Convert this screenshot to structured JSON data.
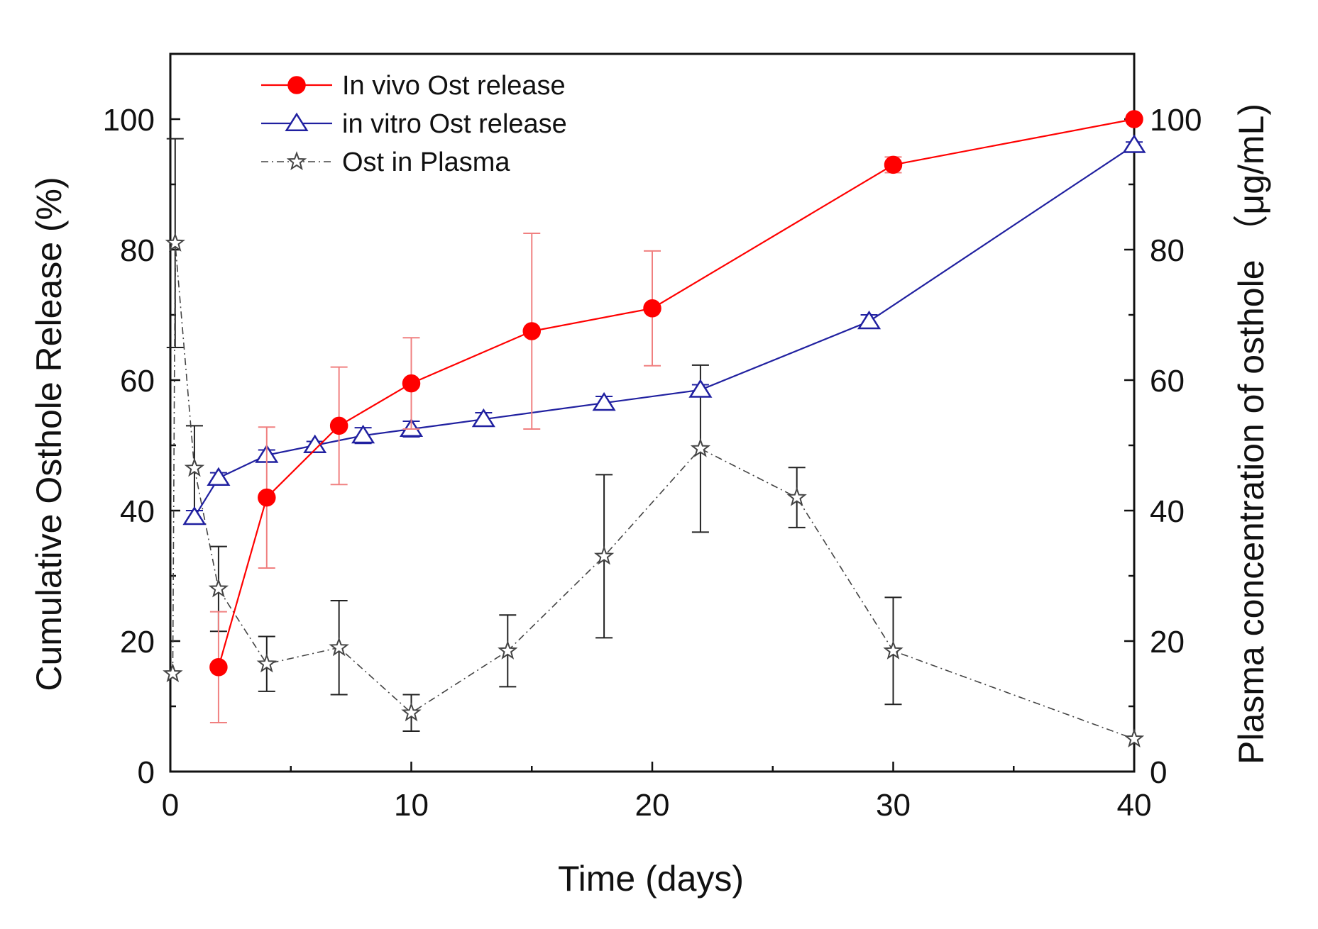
{
  "chart_data": {
    "type": "line",
    "xlabel": "Time (days)",
    "ylabel": "Cumulative Osthole Release (%)",
    "ylabel_right": "Plasma concentration of osthole （μg/mL)",
    "xlim": [
      0,
      40
    ],
    "ylim": [
      0,
      110
    ],
    "ylim_right": [
      0,
      110
    ],
    "x_ticks": [
      "0",
      "10",
      "20",
      "30",
      "40"
    ],
    "y_ticks": [
      "0",
      "20",
      "40",
      "60",
      "80",
      "100"
    ],
    "y_ticks_right": [
      "0",
      "20",
      "40",
      "60",
      "80",
      "100"
    ],
    "legend_position": "top-left",
    "series": [
      {
        "name": "In vivo Ost release",
        "axis": "left",
        "color": "#ff0000",
        "error_color": "#f08080",
        "marker": "filled-circle",
        "x": [
          2,
          4,
          7,
          10,
          15,
          20,
          30,
          40
        ],
        "y": [
          16,
          42,
          53,
          59.5,
          67.5,
          71,
          93,
          100
        ],
        "error": [
          8.5,
          10.8,
          9,
          7,
          15,
          8.8,
          1.2,
          0
        ]
      },
      {
        "name": "in vitro Ost release",
        "axis": "left",
        "color": "#2020a0",
        "error_color": "#2020a0",
        "marker": "open-triangle",
        "x": [
          1,
          2,
          4,
          6,
          8,
          10,
          13,
          18,
          22,
          29,
          40
        ],
        "y": [
          39,
          45,
          48.5,
          50,
          51.5,
          52.5,
          54,
          56.5,
          58.5,
          69,
          96
        ],
        "error": [
          1,
          0.8,
          0.8,
          0.6,
          1.2,
          1.2,
          1,
          1,
          0.8,
          1,
          0.5
        ]
      },
      {
        "name": "Ost in Plasma",
        "axis": "right",
        "color": "#444444",
        "error_color": "#222222",
        "marker": "open-star",
        "x": [
          0.1,
          0.2,
          1,
          2,
          4,
          7,
          10,
          14,
          18,
          22,
          26,
          30,
          40
        ],
        "y": [
          15,
          81,
          46.5,
          28,
          16.5,
          19,
          9,
          18.5,
          33,
          49.5,
          42,
          18.5,
          5
        ],
        "error": [
          0,
          16,
          6.5,
          6.5,
          4.2,
          7.2,
          2.8,
          5.5,
          12.5,
          12.8,
          4.6,
          8.2,
          0
        ]
      }
    ]
  }
}
